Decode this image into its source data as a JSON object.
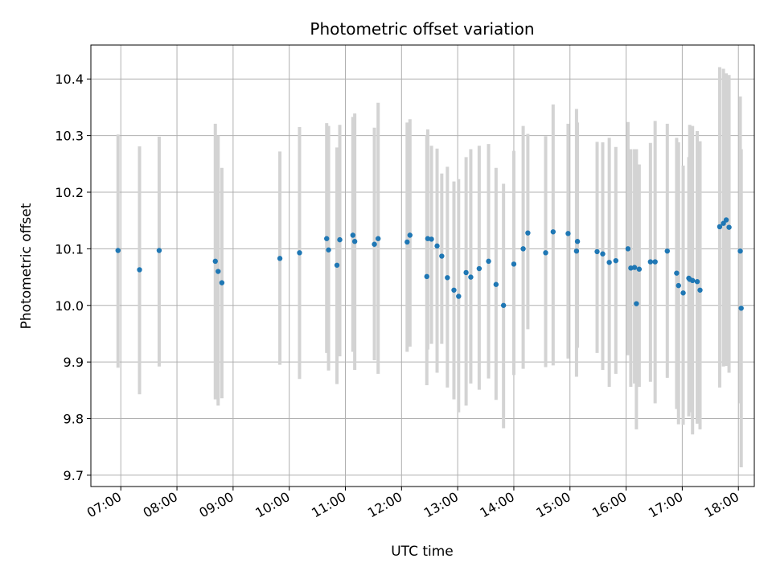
{
  "chart_data": {
    "type": "scatter",
    "title": "Photometric offset variation",
    "xlabel": "UTC time",
    "ylabel": "Photometric offset",
    "x_ticks": [
      "07:00",
      "08:00",
      "09:00",
      "10:00",
      "11:00",
      "12:00",
      "13:00",
      "14:00",
      "15:00",
      "16:00",
      "17:00",
      "18:00"
    ],
    "y_ticks": [
      "9.7",
      "9.8",
      "9.9",
      "10.0",
      "10.1",
      "10.2",
      "10.3",
      "10.4"
    ],
    "xlim": [
      "06:28",
      "18:17"
    ],
    "ylim": [
      9.68,
      10.46
    ],
    "grid": true,
    "colors": {
      "point": "#1f77b4",
      "errorbar": "#d3d3d3",
      "grid": "#b0b0b0"
    },
    "series": [
      {
        "x": [
          "06:57",
          "07:20",
          "07:41",
          "08:41",
          "08:44",
          "08:48",
          "09:50",
          "10:11",
          "10:40",
          "10:42",
          "10:51",
          "10:54",
          "11:08",
          "11:10",
          "11:31",
          "11:35",
          "12:06",
          "12:09",
          "12:27",
          "12:28",
          "12:32",
          "12:38",
          "12:43",
          "12:49",
          "12:56",
          "13:01",
          "13:09",
          "13:14",
          "13:23",
          "13:33",
          "13:41",
          "13:49",
          "14:00",
          "14:10",
          "14:15",
          "14:34",
          "14:42",
          "14:58",
          "15:07",
          "15:08",
          "15:29",
          "15:35",
          "15:42",
          "15:49",
          "16:02",
          "16:05",
          "16:09",
          "16:11",
          "16:14",
          "16:26",
          "16:31",
          "16:44",
          "16:54",
          "16:56",
          "17:01",
          "17:07",
          "17:08",
          "17:11",
          "17:16",
          "17:19",
          "17:40",
          "17:44",
          "17:47",
          "17:50",
          "18:02",
          "18:03"
        ],
        "y": [
          10.097,
          10.063,
          10.097,
          10.078,
          10.06,
          10.04,
          10.083,
          10.093,
          10.118,
          10.098,
          10.071,
          10.116,
          10.124,
          10.113,
          10.108,
          10.118,
          10.112,
          10.124,
          10.051,
          10.118,
          10.117,
          10.105,
          10.087,
          10.049,
          10.027,
          10.016,
          10.058,
          10.05,
          10.065,
          10.078,
          10.037,
          10.0,
          10.073,
          10.1,
          10.128,
          10.093,
          10.13,
          10.127,
          10.096,
          10.113,
          10.095,
          10.091,
          10.076,
          10.079,
          10.1,
          10.066,
          10.067,
          10.003,
          10.064,
          10.077,
          10.077,
          10.096,
          10.057,
          10.035,
          10.022,
          10.048,
          10.046,
          10.044,
          10.042,
          10.027,
          10.139,
          10.145,
          10.151,
          10.138,
          10.096,
          9.995
        ],
        "yerr_low": [
          9.89,
          9.843,
          9.892,
          9.834,
          9.823,
          9.836,
          9.895,
          9.87,
          9.916,
          9.885,
          9.861,
          9.91,
          9.918,
          9.886,
          9.903,
          9.879,
          9.918,
          9.927,
          9.859,
          9.922,
          9.932,
          9.881,
          9.932,
          9.855,
          9.834,
          9.811,
          9.823,
          9.862,
          9.851,
          9.871,
          9.833,
          9.783,
          9.877,
          9.888,
          9.958,
          9.891,
          9.894,
          9.906,
          9.874,
          9.925,
          9.916,
          9.886,
          9.856,
          9.879,
          9.912,
          9.856,
          9.862,
          9.781,
          9.856,
          9.865,
          9.827,
          9.872,
          9.817,
          9.79,
          9.789,
          9.804,
          9.811,
          9.772,
          9.791,
          9.781,
          9.855,
          9.892,
          9.893,
          9.881,
          9.827,
          9.714
        ],
        "yerr_high": [
          10.302,
          10.281,
          10.298,
          10.321,
          10.3,
          10.243,
          10.272,
          10.315,
          10.322,
          10.317,
          10.279,
          10.319,
          10.333,
          10.339,
          10.314,
          10.358,
          10.323,
          10.329,
          10.301,
          10.311,
          10.282,
          10.277,
          10.233,
          10.245,
          10.219,
          10.223,
          10.262,
          10.276,
          10.282,
          10.285,
          10.243,
          10.215,
          10.273,
          10.317,
          10.303,
          10.299,
          10.355,
          10.321,
          10.347,
          10.323,
          10.289,
          10.288,
          10.296,
          10.28,
          10.324,
          10.276,
          10.276,
          10.276,
          10.249,
          10.287,
          10.326,
          10.321,
          10.296,
          10.288,
          10.247,
          10.262,
          10.319,
          10.317,
          10.308,
          10.29,
          10.421,
          10.418,
          10.41,
          10.407,
          10.369,
          10.276
        ]
      }
    ]
  }
}
